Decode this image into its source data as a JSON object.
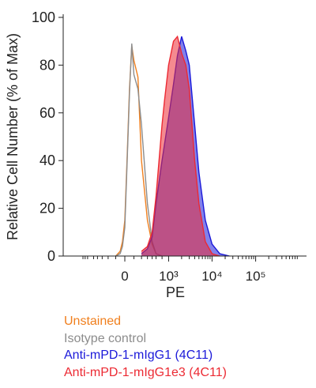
{
  "chart_data": {
    "type": "area",
    "title": "",
    "xlabel": "PE",
    "ylabel": "Relative Cell Number (% of Max)",
    "x_scale": "biexponential",
    "ylim": [
      0,
      100
    ],
    "y_ticks": [
      0,
      20,
      40,
      60,
      80,
      100
    ],
    "x_tick_labels": [
      "0",
      "10³",
      "10⁴",
      "10⁵"
    ],
    "x_tick_values": [
      0,
      1000,
      10000,
      100000
    ],
    "grid": false,
    "legend_position": "bottom-left",
    "series": [
      {
        "name": "Unstained",
        "color": "#f07f1d",
        "filled": false,
        "x": [
          -100,
          -50,
          -25,
          0,
          25,
          50,
          75,
          100,
          150,
          200,
          300,
          400,
          500,
          700
        ],
        "values": [
          0,
          2,
          6,
          15,
          42,
          70,
          88,
          82,
          75,
          40,
          15,
          5,
          1,
          0
        ]
      },
      {
        "name": "Isotype control",
        "color": "#8c8c8c",
        "filled": false,
        "x": [
          -100,
          -50,
          -25,
          0,
          25,
          50,
          75,
          100,
          150,
          200,
          300,
          400,
          500,
          700
        ],
        "values": [
          0,
          1,
          4,
          12,
          40,
          68,
          89,
          76,
          70,
          55,
          22,
          6,
          1,
          0
        ]
      },
      {
        "name": "Anti-mPD-1-mIgG1 (4C11)",
        "color": "#1b19d9",
        "filled": true,
        "x": [
          200,
          300,
          400,
          500,
          700,
          1000,
          1300,
          1600,
          2000,
          2500,
          3000,
          4000,
          5000,
          7000,
          10000,
          15000,
          25000
        ],
        "values": [
          1,
          3,
          8,
          22,
          40,
          58,
          72,
          84,
          92,
          86,
          80,
          55,
          35,
          15,
          5,
          1,
          0
        ]
      },
      {
        "name": "Anti-mPD-1-mIgG1e3 (4C11)",
        "color": "#ec2a33",
        "filled": true,
        "x": [
          200,
          300,
          400,
          500,
          700,
          800,
          1000,
          1300,
          1600,
          2000,
          2500,
          3000,
          4000,
          5000,
          7000,
          10000,
          15000
        ],
        "values": [
          2,
          4,
          10,
          25,
          55,
          65,
          80,
          90,
          92,
          85,
          80,
          70,
          40,
          22,
          6,
          1,
          0
        ]
      }
    ]
  }
}
